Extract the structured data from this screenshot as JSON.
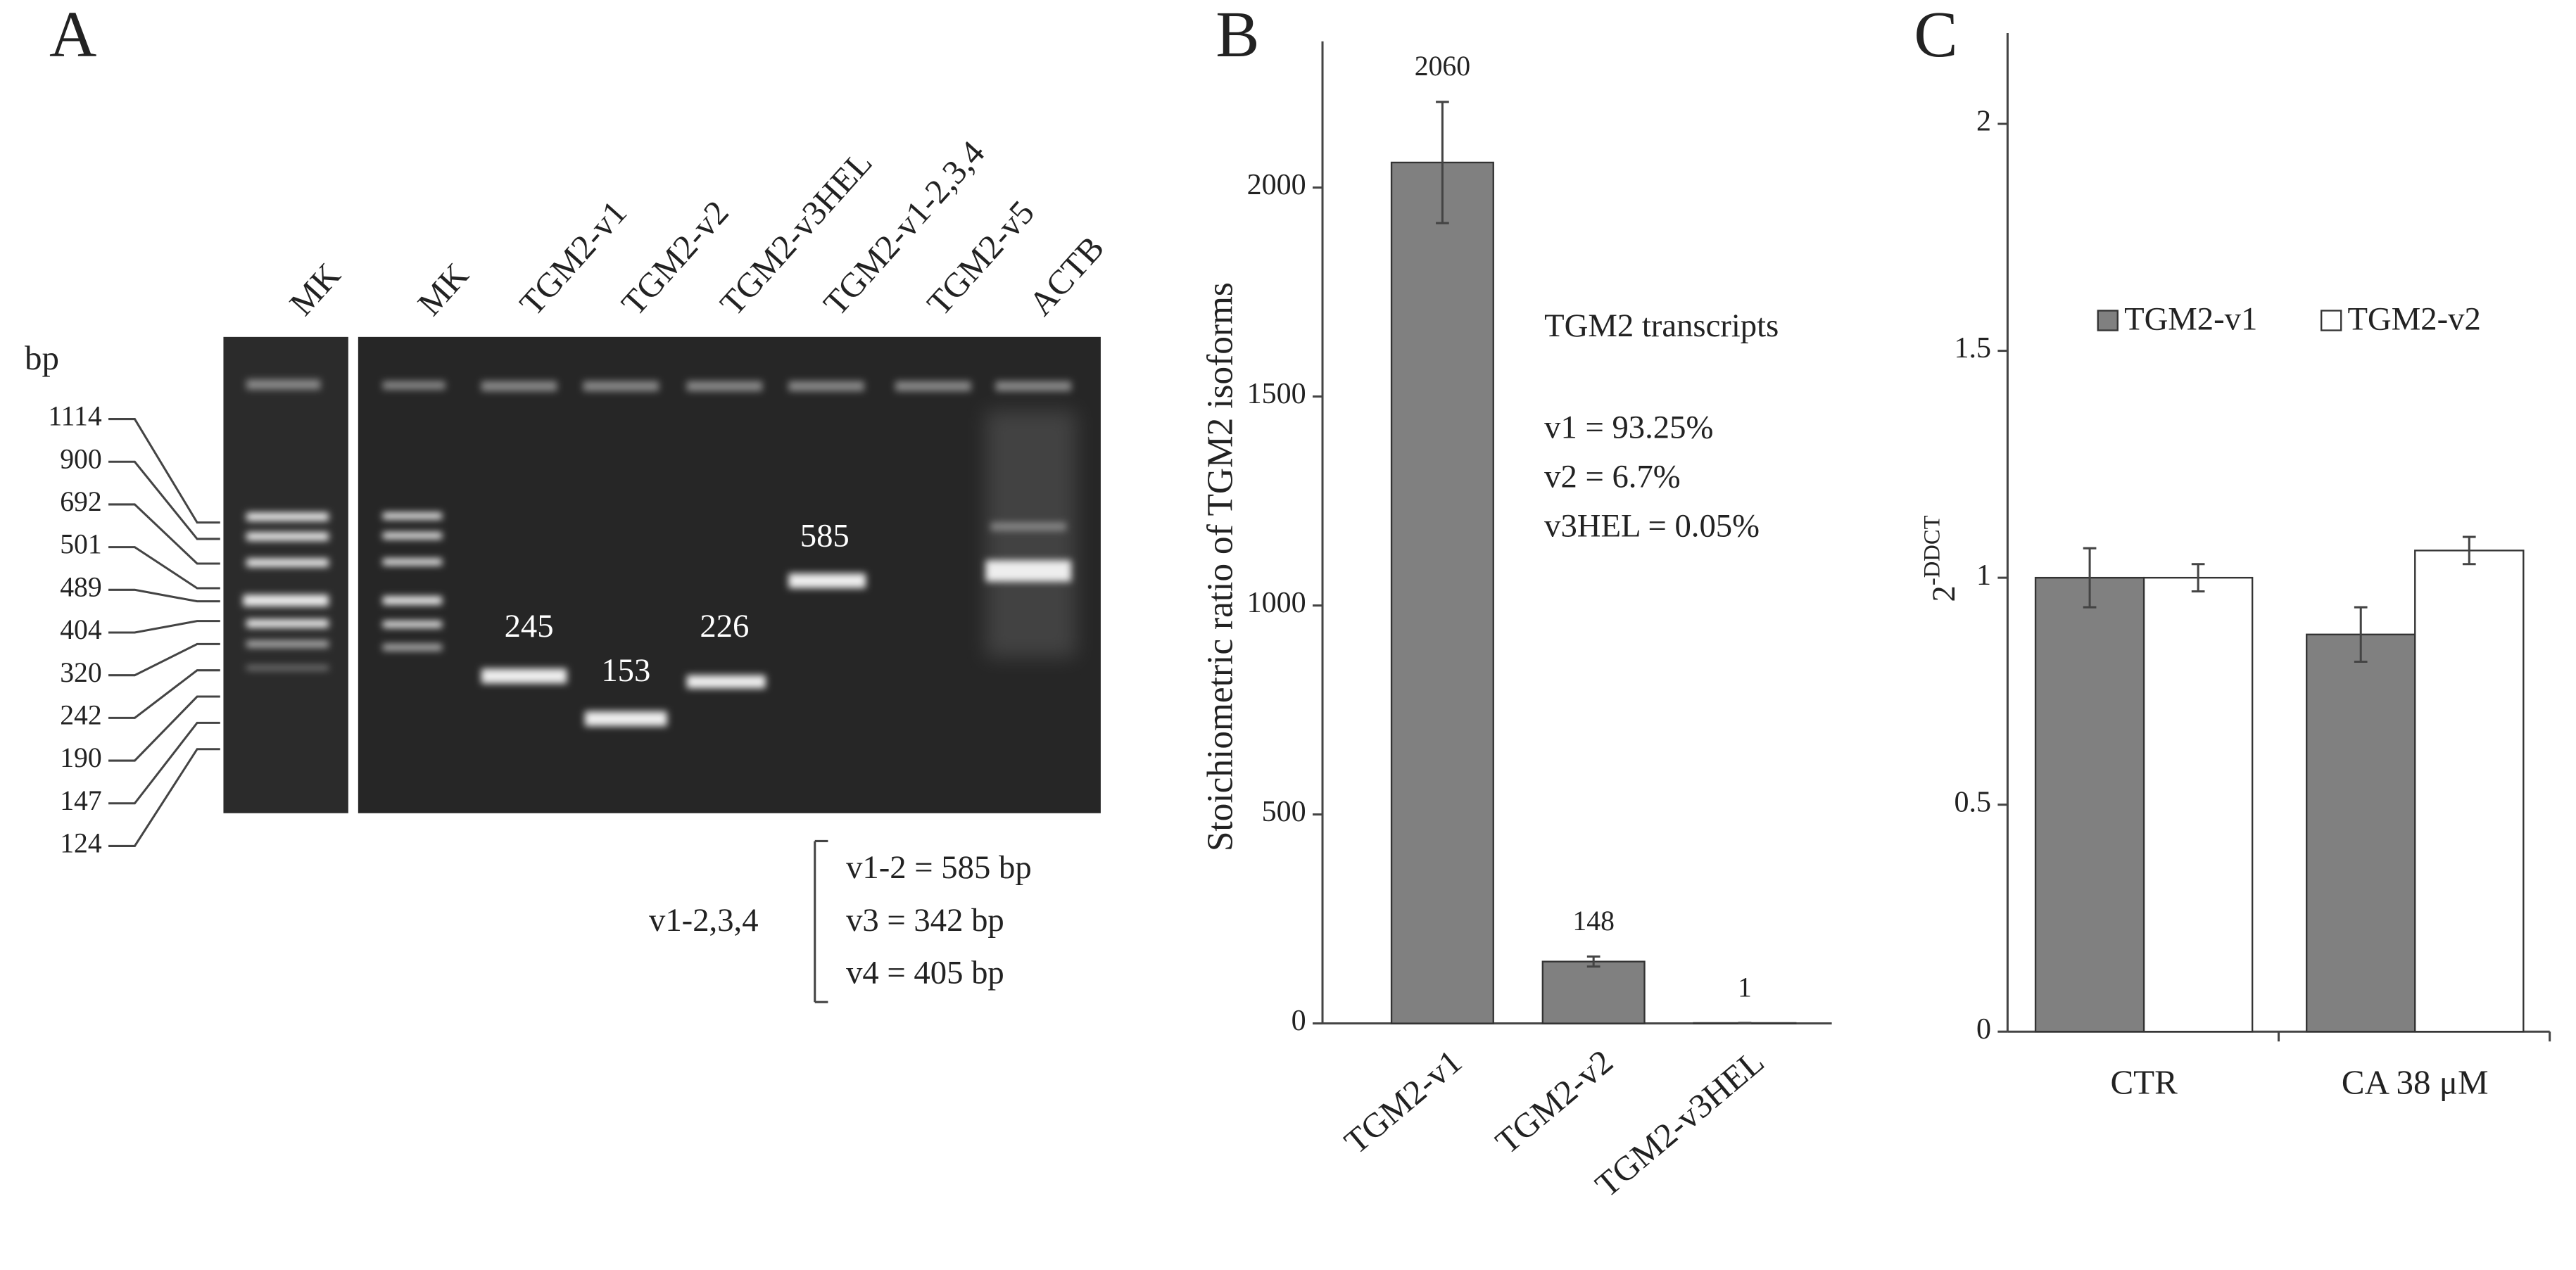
{
  "panel_a": {
    "label": "A",
    "lanes": [
      "MK",
      "MK",
      "TGM2-v1",
      "TGM2-v2",
      "TGM2-v3HEL",
      "TGM2-v1-2,3,4",
      "TGM2-v5",
      "ACTB"
    ],
    "unit": "bp",
    "markers": [
      1114,
      900,
      692,
      501,
      489,
      404,
      320,
      242,
      190,
      147,
      124
    ],
    "band_labels": [
      245,
      153,
      226,
      585
    ],
    "bracket_label": "v1-2,3,4",
    "bracket_lines": [
      "v1-2 = 585 bp",
      "v3 = 342 bp",
      "v4 = 405 bp"
    ]
  },
  "chart_data": [
    {
      "type": "bar",
      "panel": "B",
      "y_label": "Stoichiometric ratio of TGM2 isoforms",
      "categories": [
        "TGM2-v1",
        "TGM2-v2",
        "TGM2-v3HEL"
      ],
      "values": [
        2060,
        148,
        1
      ],
      "errors": [
        145,
        12,
        0
      ],
      "color": "#808080",
      "ylim": [
        0,
        2350
      ],
      "yticks": [
        0,
        500,
        1000,
        1500,
        2000
      ],
      "annotations": [
        "TGM2 transcripts",
        "v1 = 93.25%",
        "v2 = 6.7%",
        "v3HEL = 0.05%"
      ]
    },
    {
      "type": "bar",
      "panel": "C",
      "y_label": {
        "base": "2",
        "superscript": "-DDCT"
      },
      "categories": [
        "CTR",
        "CA 38 μM"
      ],
      "series": [
        {
          "name": "TGM2-v1",
          "color": "#808080",
          "values": [
            1.0,
            0.875
          ],
          "errors": [
            0.065,
            0.06
          ]
        },
        {
          "name": "TGM2-v2",
          "color": "#ffffff",
          "values": [
            1.0,
            1.06
          ],
          "errors": [
            0.03,
            0.03
          ]
        }
      ],
      "ylim": [
        0,
        2.2
      ],
      "yticks": [
        0,
        0.5,
        1,
        1.5,
        2
      ],
      "legend": "top"
    }
  ]
}
